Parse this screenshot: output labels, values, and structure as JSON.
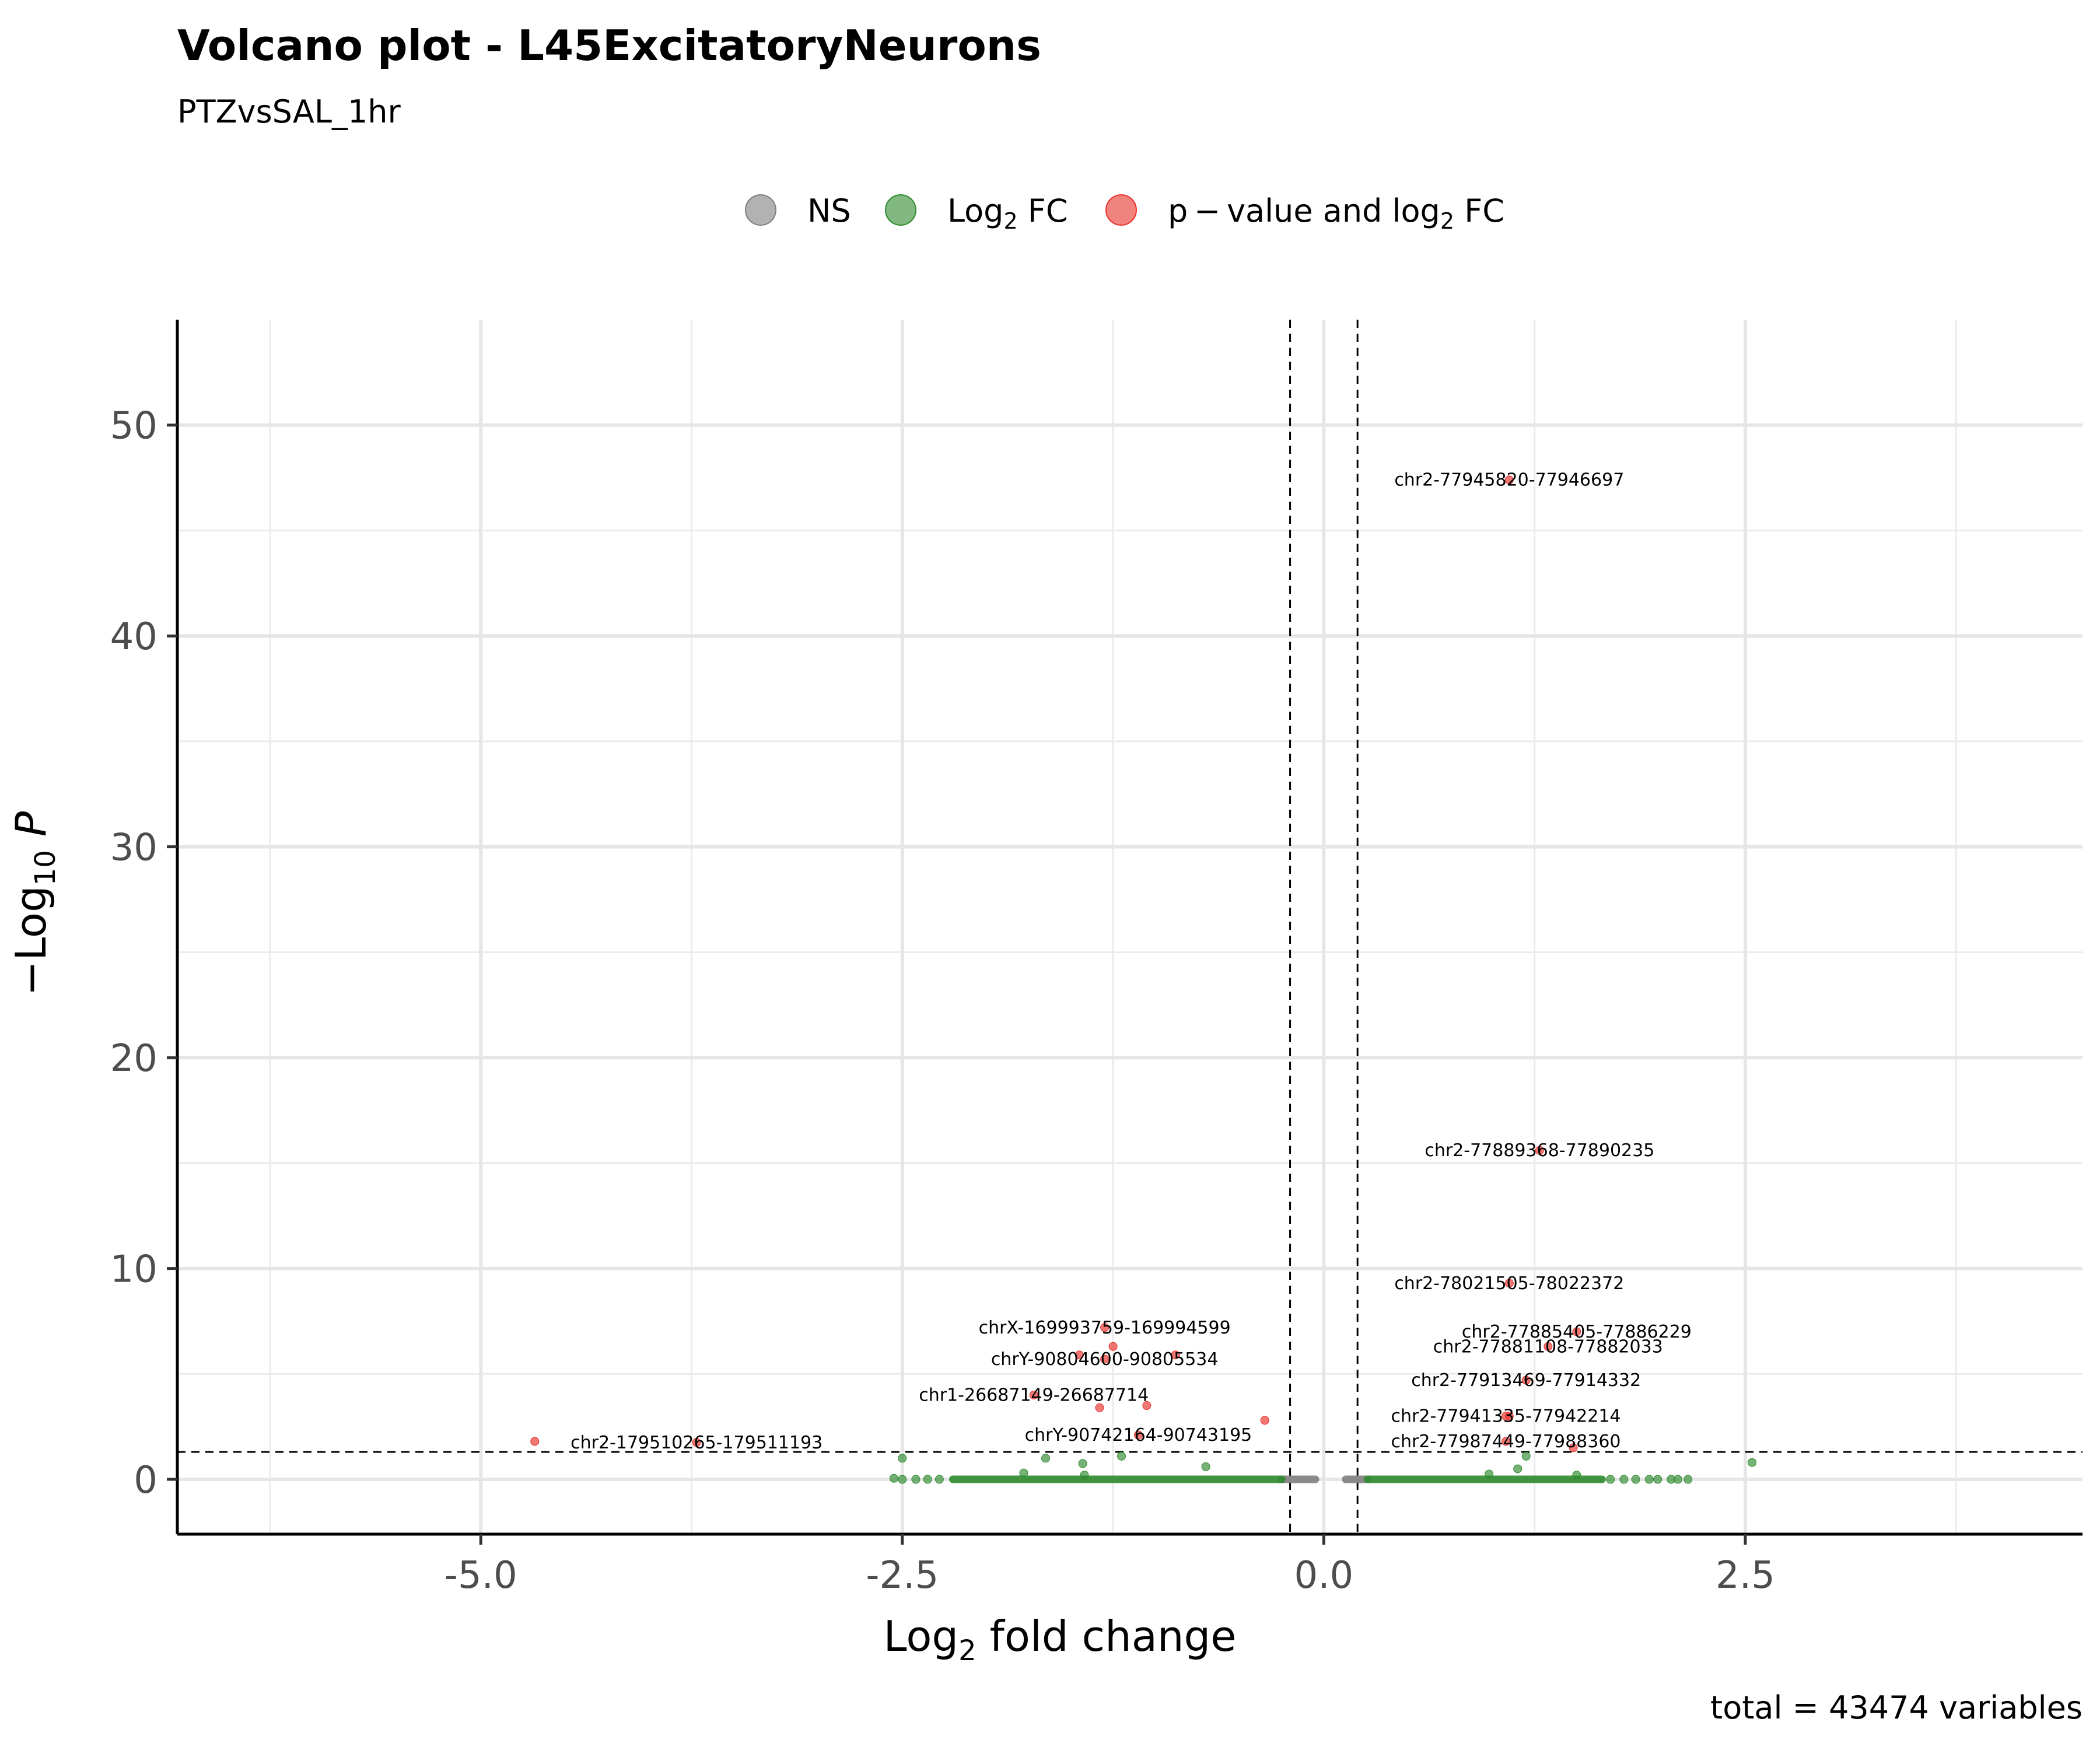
{
  "chart_data": {
    "type": "scatter",
    "title": "Volcano plot - L45ExcitatoryNeurons",
    "subtitle": "PTZvsSAL_1hr",
    "caption": "total = 43474 variables",
    "xlabel": {
      "main": "Log",
      "sub": "2",
      "rest": " fold change"
    },
    "ylabel": {
      "minus": "−",
      "main": "Log",
      "sub": "10",
      "italic": "P"
    },
    "xlim": [
      -6.8,
      4.5
    ],
    "ylim": [
      -2.6,
      55
    ],
    "x_ticks": [
      {
        "value": -5.0,
        "label": "-5.0"
      },
      {
        "value": -2.5,
        "label": "-2.5"
      },
      {
        "value": 0.0,
        "label": "0.0"
      },
      {
        "value": 2.5,
        "label": "2.5"
      }
    ],
    "x_minor": [
      -6.25,
      -3.75,
      -1.25,
      1.25,
      3.75
    ],
    "y_ticks": [
      {
        "value": 0,
        "label": "0"
      },
      {
        "value": 10,
        "label": "10"
      },
      {
        "value": 20,
        "label": "20"
      },
      {
        "value": 30,
        "label": "30"
      },
      {
        "value": 40,
        "label": "40"
      },
      {
        "value": 50,
        "label": "50"
      }
    ],
    "y_minor": [
      5,
      15,
      25,
      35,
      45
    ],
    "cutoffs": {
      "log2fc": [
        -0.2,
        0.2
      ],
      "neg_log10_p": 1.3
    },
    "grid": true,
    "legend_position": "top",
    "legend": [
      {
        "key": "NS",
        "color": "#7f7f7f"
      },
      {
        "key": "Log2FC",
        "color": "#2e8b2e",
        "parts": [
          "Log",
          "2",
          " FC"
        ]
      },
      {
        "key": "both",
        "color": "#e8302a",
        "parts": [
          "p − value and log",
          "2",
          " FC"
        ]
      }
    ],
    "colors": {
      "ns": "#7f7f7f",
      "fc": "#2e8b2e",
      "sig": "#e8302a"
    },
    "series": [
      {
        "name": "NS",
        "ranges": [
          [
            -0.25,
            -0.05
          ],
          [
            0.13,
            0.26
          ]
        ],
        "y": 0
      },
      {
        "name": "Log2FC",
        "ranges": [
          [
            -2.2,
            -0.25
          ],
          [
            0.26,
            1.65
          ]
        ],
        "y": 0,
        "points": [
          {
            "x": -2.55,
            "y": 0.05
          },
          {
            "x": -2.5,
            "y": 0.0
          },
          {
            "x": -2.42,
            "y": 0.0
          },
          {
            "x": -2.35,
            "y": 0.0
          },
          {
            "x": -2.28,
            "y": 0.0
          },
          {
            "x": -2.5,
            "y": 1.0
          },
          {
            "x": -1.65,
            "y": 1.0
          },
          {
            "x": -1.43,
            "y": 0.75
          },
          {
            "x": -1.2,
            "y": 1.1
          },
          {
            "x": -0.7,
            "y": 0.6
          },
          {
            "x": -1.42,
            "y": 0.2
          },
          {
            "x": -1.78,
            "y": 0.3
          },
          {
            "x": 0.98,
            "y": 0.25
          },
          {
            "x": 1.15,
            "y": 0.5
          },
          {
            "x": 1.2,
            "y": 1.1
          },
          {
            "x": 1.5,
            "y": 0.2
          },
          {
            "x": 1.7,
            "y": 0.0
          },
          {
            "x": 1.78,
            "y": 0.0
          },
          {
            "x": 1.85,
            "y": 0.0
          },
          {
            "x": 1.93,
            "y": 0.0
          },
          {
            "x": 1.98,
            "y": 0.0
          },
          {
            "x": 2.06,
            "y": 0.0
          },
          {
            "x": 2.1,
            "y": 0.0
          },
          {
            "x": 2.16,
            "y": 0.0
          },
          {
            "x": 2.54,
            "y": 0.8
          }
        ]
      },
      {
        "name": "p-value and log2FC",
        "points": [
          {
            "x": 1.1,
            "y": 47.4,
            "label": "chr2-77945820-77946697"
          },
          {
            "x": 1.28,
            "y": 15.6,
            "label": "chr2-77889368-77890235"
          },
          {
            "x": 1.1,
            "y": 9.3,
            "label": "chr2-78021505-78022372"
          },
          {
            "x": 1.5,
            "y": 7.0,
            "label": "chr2-77885405-77886229"
          },
          {
            "x": 1.33,
            "y": 6.3,
            "label": "chr2-77881108-77882033"
          },
          {
            "x": 1.2,
            "y": 4.7,
            "label": "chr2-77913469-77914332"
          },
          {
            "x": 1.08,
            "y": 3.0,
            "label": "chr2-77941335-77942214"
          },
          {
            "x": 1.08,
            "y": 1.8,
            "label": "chr2-77987449-77988360"
          },
          {
            "x": -1.3,
            "y": 7.2,
            "label": "chrX-169993759-169994599"
          },
          {
            "x": -1.3,
            "y": 5.7,
            "label": "chrY-90804600-90805534"
          },
          {
            "x": -1.72,
            "y": 4.0,
            "label": "chr1-26687149-26687714"
          },
          {
            "x": -1.1,
            "y": 2.1,
            "label": "chrY-90742164-90743195"
          },
          {
            "x": -3.72,
            "y": 1.75,
            "label": "chr2-179510265-179511193"
          },
          {
            "x": -4.68,
            "y": 1.8
          },
          {
            "x": -1.45,
            "y": 5.9
          },
          {
            "x": -0.88,
            "y": 5.9
          },
          {
            "x": -1.25,
            "y": 6.3
          },
          {
            "x": -1.33,
            "y": 3.4
          },
          {
            "x": -1.05,
            "y": 3.5
          },
          {
            "x": -0.35,
            "y": 2.8
          },
          {
            "x": 1.1,
            "y": 3.0
          },
          {
            "x": 1.48,
            "y": 1.5
          }
        ]
      }
    ]
  }
}
